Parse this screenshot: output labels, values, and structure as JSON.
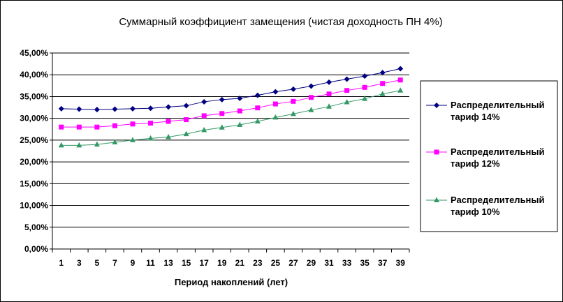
{
  "chart_data": {
    "type": "line",
    "title": "Суммарный коэффициент замещения (чистая доходность ПН 4%)",
    "xlabel": "Период накоплений (лет)",
    "ylabel": "",
    "x": [
      1,
      3,
      5,
      7,
      9,
      11,
      13,
      15,
      17,
      19,
      21,
      23,
      25,
      27,
      29,
      31,
      33,
      35,
      37,
      39
    ],
    "x_tick_labels": [
      "1",
      "3",
      "5",
      "7",
      "9",
      "11",
      "13",
      "15",
      "17",
      "19",
      "21",
      "23",
      "25",
      "27",
      "29",
      "31",
      "33",
      "35",
      "37",
      "39"
    ],
    "ylim": [
      0,
      45
    ],
    "y_ticks": [
      0,
      5,
      10,
      15,
      20,
      25,
      30,
      35,
      40,
      45
    ],
    "y_tick_labels": [
      "0,00%",
      "5,00%",
      "10,00%",
      "15,00%",
      "20,00%",
      "25,00%",
      "30,00%",
      "35,00%",
      "40,00%",
      "45,00%"
    ],
    "grid": "horizontal",
    "legend_position": "right",
    "series": [
      {
        "name_line1": "Распределительный",
        "name_line2": "тариф  14%",
        "color": "#000080",
        "marker": "diamond",
        "values": [
          32.2,
          32.1,
          32.0,
          32.1,
          32.2,
          32.3,
          32.6,
          32.9,
          33.8,
          34.3,
          34.6,
          35.3,
          36.1,
          36.7,
          37.4,
          38.3,
          39.0,
          39.7,
          40.5,
          41.4
        ]
      },
      {
        "name_line1": "Распределительный",
        "name_line2": "тариф  12%",
        "color": "#ff00ff",
        "marker": "square",
        "values": [
          28.0,
          28.0,
          28.0,
          28.3,
          28.7,
          28.9,
          29.3,
          29.7,
          30.6,
          31.1,
          31.7,
          32.4,
          33.3,
          33.9,
          34.8,
          35.6,
          36.4,
          37.1,
          38.0,
          38.8
        ]
      },
      {
        "name_line1": "Распределительный",
        "name_line2": "тариф  10%",
        "color": "#339966",
        "marker": "triangle",
        "values": [
          23.8,
          23.8,
          24.0,
          24.5,
          25.0,
          25.4,
          25.7,
          26.4,
          27.3,
          27.9,
          28.5,
          29.3,
          30.2,
          31.0,
          31.9,
          32.7,
          33.7,
          34.5,
          35.6,
          36.4
        ]
      }
    ]
  }
}
